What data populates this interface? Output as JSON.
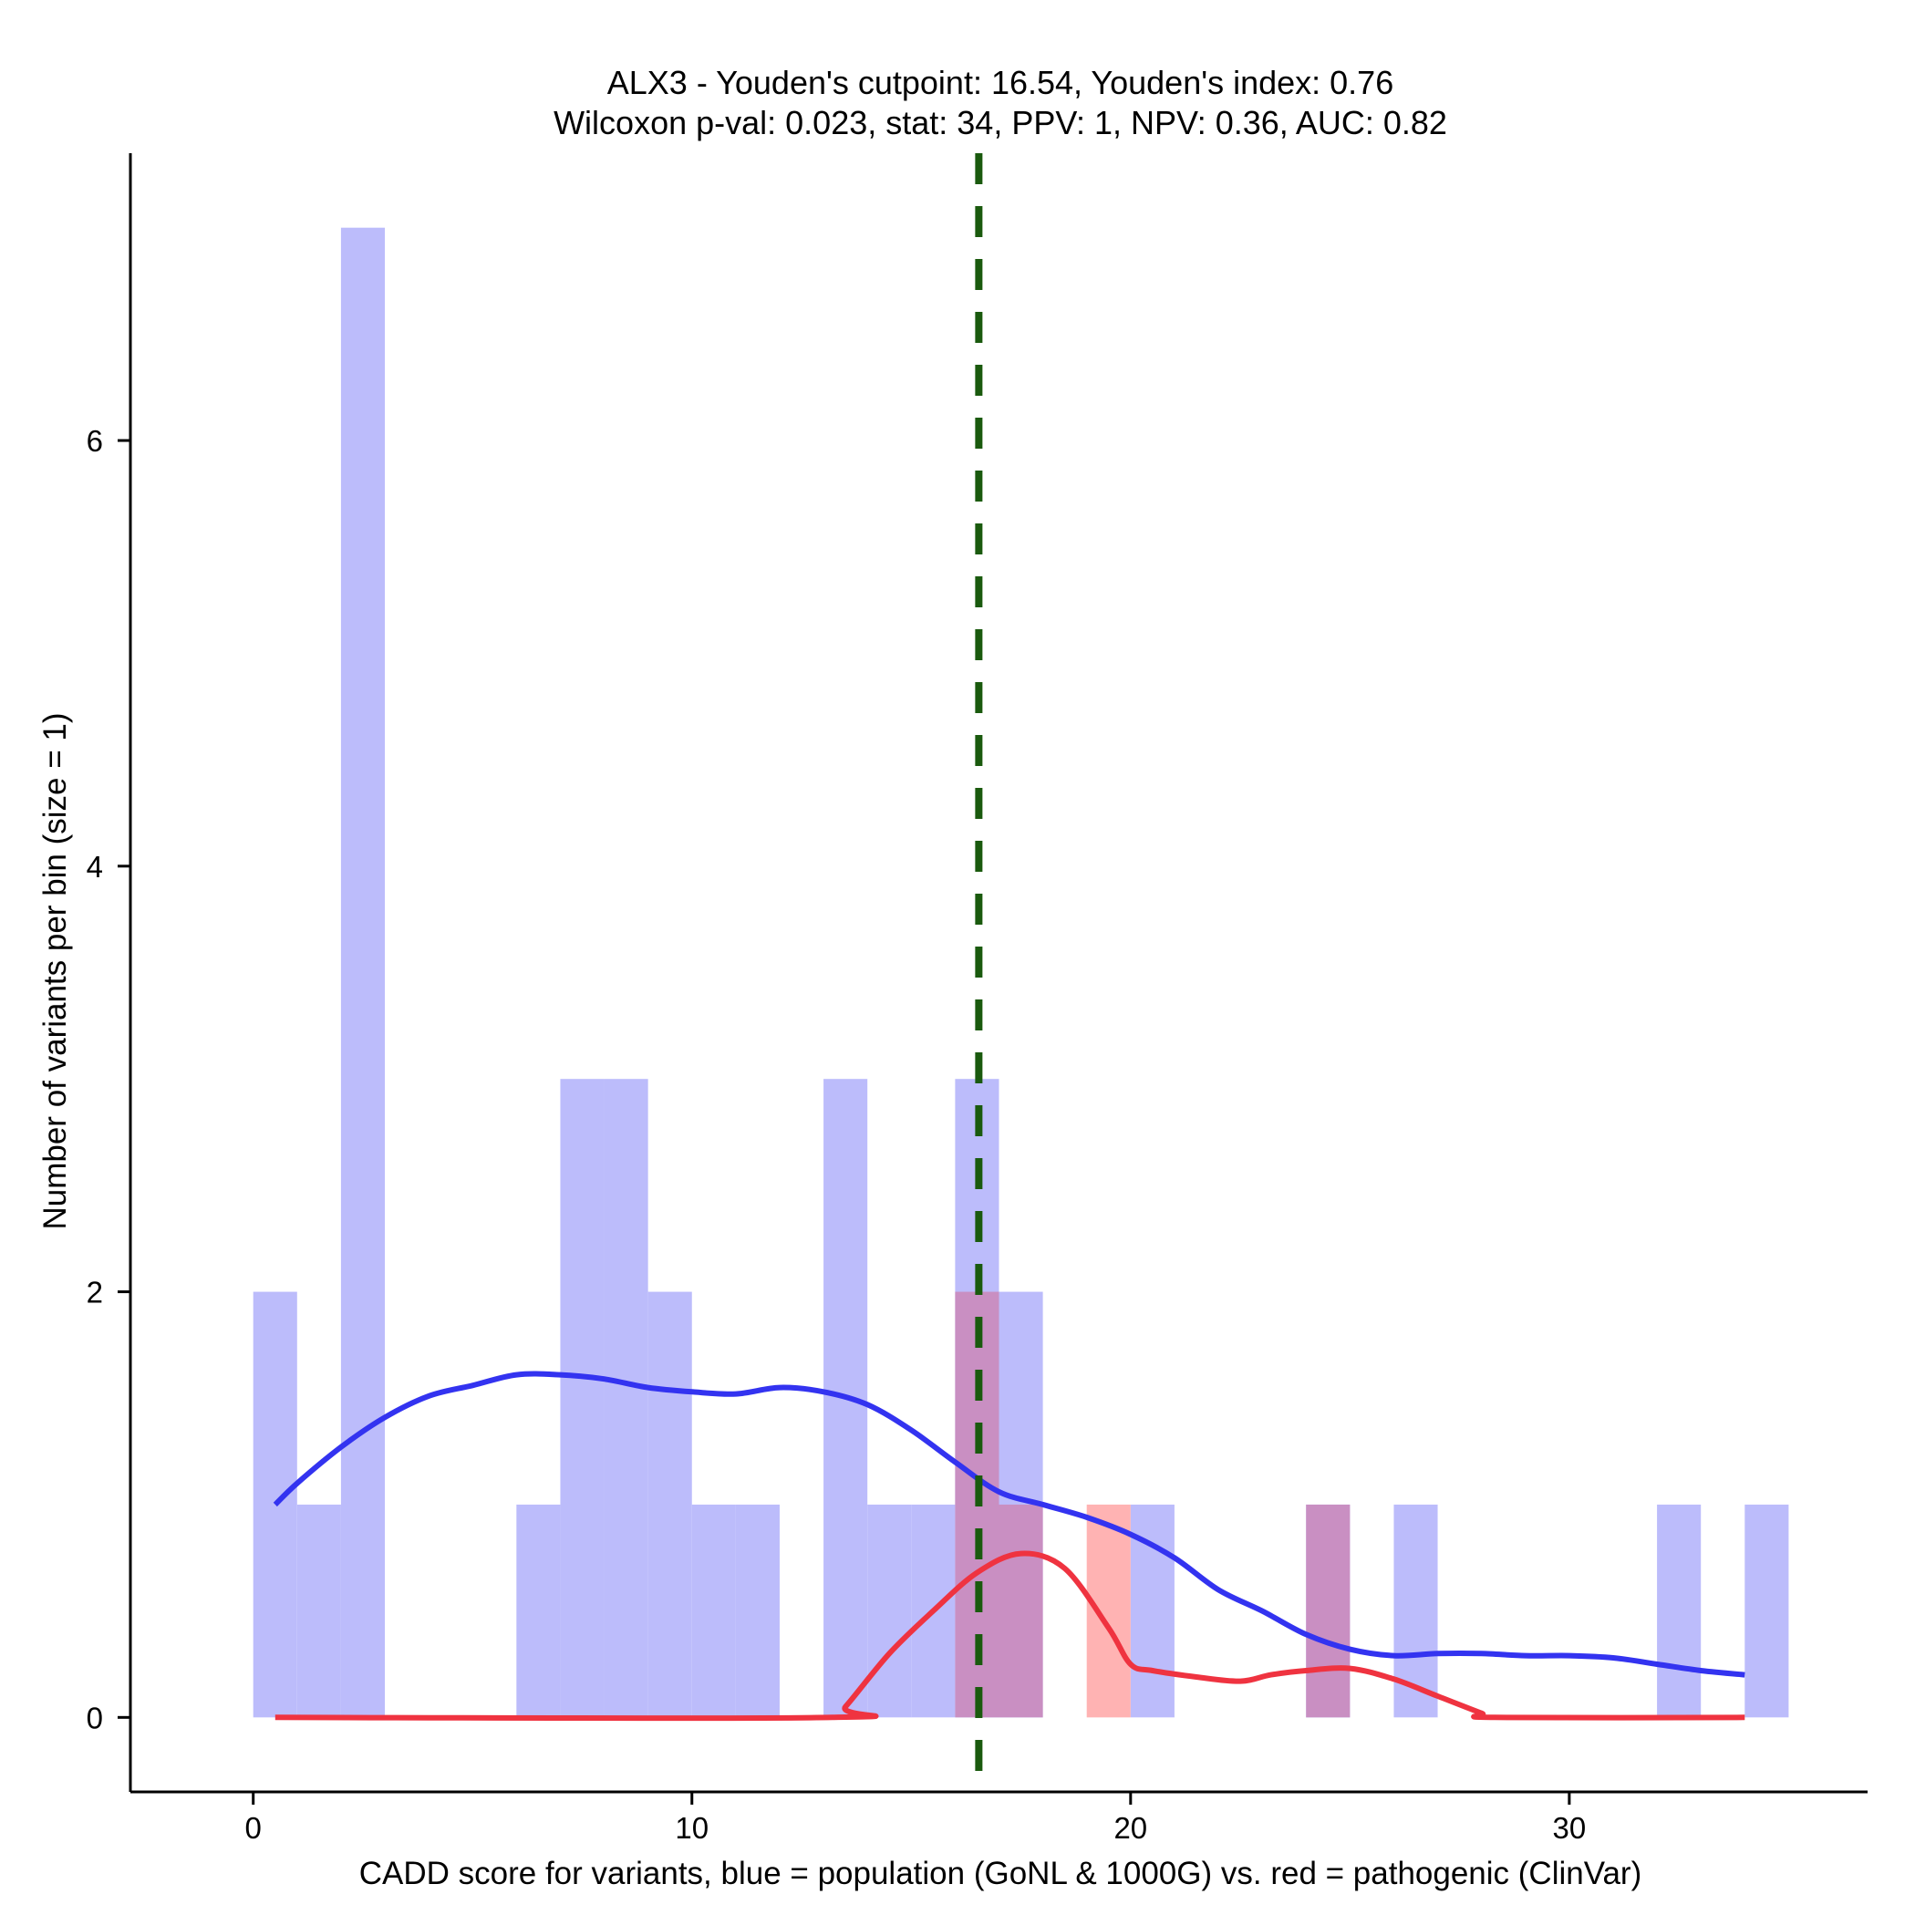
{
  "chart_data": {
    "type": "bar",
    "title": "ALX3 - Youden's cutpoint: 16.54, Youden's index: 0.76",
    "subtitle": "Wilcoxon p-val: 0.023, stat: 34, PPV: 1, NPV: 0.36, AUC: 0.82",
    "xlabel": "CADD score for variants, blue = population (GoNL & 1000G) vs. red = pathogenic (ClinVar)",
    "ylabel": "Number of variants per bin (size = 1)",
    "xlim": [
      -2.8,
      36.8
    ],
    "ylim": [
      -0.35,
      7.35
    ],
    "x_ticks": [
      0,
      10,
      20,
      30
    ],
    "y_ticks": [
      0,
      2,
      4,
      6
    ],
    "grid": false,
    "bin_size": 1,
    "cutpoint": 16.54,
    "colors": {
      "population_bar": "#bcbcfb",
      "pathogenic_bar": "#ffb3b3",
      "overlap_bar": "#c98fc2",
      "population_density": "#3333f0",
      "pathogenic_density": "#ef3340",
      "cutpoint_line": "#1a5a0e"
    },
    "series": [
      {
        "name": "blue = population (GoNL & 1000G)",
        "bins": [
          {
            "start": 0,
            "count": 2
          },
          {
            "start": 1,
            "count": 1
          },
          {
            "start": 2,
            "count": 7
          },
          {
            "start": 6,
            "count": 1
          },
          {
            "start": 7,
            "count": 3
          },
          {
            "start": 8,
            "count": 3
          },
          {
            "start": 9,
            "count": 2
          },
          {
            "start": 10,
            "count": 1
          },
          {
            "start": 11,
            "count": 1
          },
          {
            "start": 13,
            "count": 3
          },
          {
            "start": 14,
            "count": 1
          },
          {
            "start": 15,
            "count": 1
          },
          {
            "start": 16,
            "count": 3
          },
          {
            "start": 17,
            "count": 2
          },
          {
            "start": 20,
            "count": 1
          },
          {
            "start": 24,
            "count": 1
          },
          {
            "start": 26,
            "count": 1
          },
          {
            "start": 32,
            "count": 1
          },
          {
            "start": 34,
            "count": 1
          }
        ],
        "density_x": [
          0.5,
          1,
          2,
          3,
          4,
          5,
          6,
          7,
          8,
          9,
          10,
          11,
          12,
          13,
          14,
          15,
          16,
          17,
          18,
          19,
          20,
          21,
          22,
          23,
          24,
          25,
          26,
          27,
          28,
          29,
          30,
          31,
          32,
          33,
          34
        ],
        "density_y": [
          1.0,
          1.1,
          1.27,
          1.41,
          1.51,
          1.56,
          1.61,
          1.61,
          1.59,
          1.55,
          1.53,
          1.52,
          1.55,
          1.53,
          1.47,
          1.35,
          1.2,
          1.06,
          1.0,
          0.94,
          0.86,
          0.75,
          0.6,
          0.5,
          0.39,
          0.32,
          0.29,
          0.3,
          0.3,
          0.29,
          0.29,
          0.28,
          0.25,
          0.22,
          0.2
        ]
      },
      {
        "name": "red = pathogenic (ClinVar)",
        "bins": [
          {
            "start": 16,
            "count": 2
          },
          {
            "start": 17,
            "count": 1
          },
          {
            "start": 19,
            "count": 1
          },
          {
            "start": 24,
            "count": 1
          }
        ],
        "density_x": [
          0.5,
          13.2,
          13.5,
          14.5,
          15.5,
          16.5,
          17.5,
          18.5,
          19.5,
          20,
          20.5,
          21.5,
          22.5,
          23.2,
          24,
          25,
          26,
          27,
          28,
          28.3,
          34
        ],
        "density_y": [
          0,
          0,
          0.05,
          0.3,
          0.5,
          0.68,
          0.77,
          0.7,
          0.42,
          0.25,
          0.22,
          0.19,
          0.17,
          0.2,
          0.22,
          0.23,
          0.18,
          0.1,
          0.02,
          0,
          0
        ]
      }
    ]
  }
}
